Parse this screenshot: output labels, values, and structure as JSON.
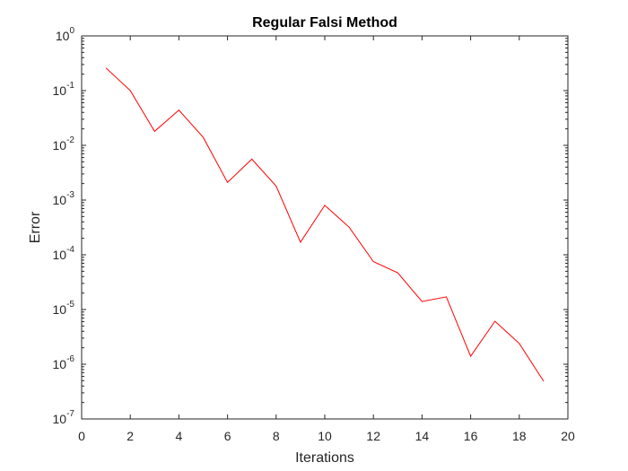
{
  "chart_data": {
    "type": "line",
    "title": "Regular Falsi Method",
    "xlabel": "Iterations",
    "ylabel": "Error",
    "xlim": [
      0,
      20
    ],
    "ylim": [
      1e-07,
      1
    ],
    "yscale": "log",
    "grid": false,
    "x_ticks": [
      0,
      2,
      4,
      6,
      8,
      10,
      12,
      14,
      16,
      18,
      20
    ],
    "y_ticks": [
      {
        "base": "10",
        "exp": "-7",
        "value": 1e-07
      },
      {
        "base": "10",
        "exp": "-6",
        "value": 1e-06
      },
      {
        "base": "10",
        "exp": "-5",
        "value": 1e-05
      },
      {
        "base": "10",
        "exp": "-4",
        "value": 0.0001
      },
      {
        "base": "10",
        "exp": "-3",
        "value": 0.001
      },
      {
        "base": "10",
        "exp": "-2",
        "value": 0.01
      },
      {
        "base": "10",
        "exp": "-1",
        "value": 0.1
      },
      {
        "base": "10",
        "exp": "0",
        "value": 1
      }
    ],
    "series": [
      {
        "color": "#ff0000",
        "x": [
          1,
          2,
          3,
          4,
          5,
          6,
          7,
          8,
          9,
          10,
          11,
          12,
          13,
          14,
          15,
          16,
          17,
          18,
          19
        ],
        "y": [
          0.26,
          0.1,
          0.018,
          0.044,
          0.014,
          0.0021,
          0.0056,
          0.0018,
          0.00017,
          0.0008,
          0.00032,
          7.5e-05,
          4.7e-05,
          1.4e-05,
          1.7e-05,
          1.4e-06,
          6.1e-06,
          2.4e-06,
          4.9e-07
        ]
      }
    ]
  }
}
